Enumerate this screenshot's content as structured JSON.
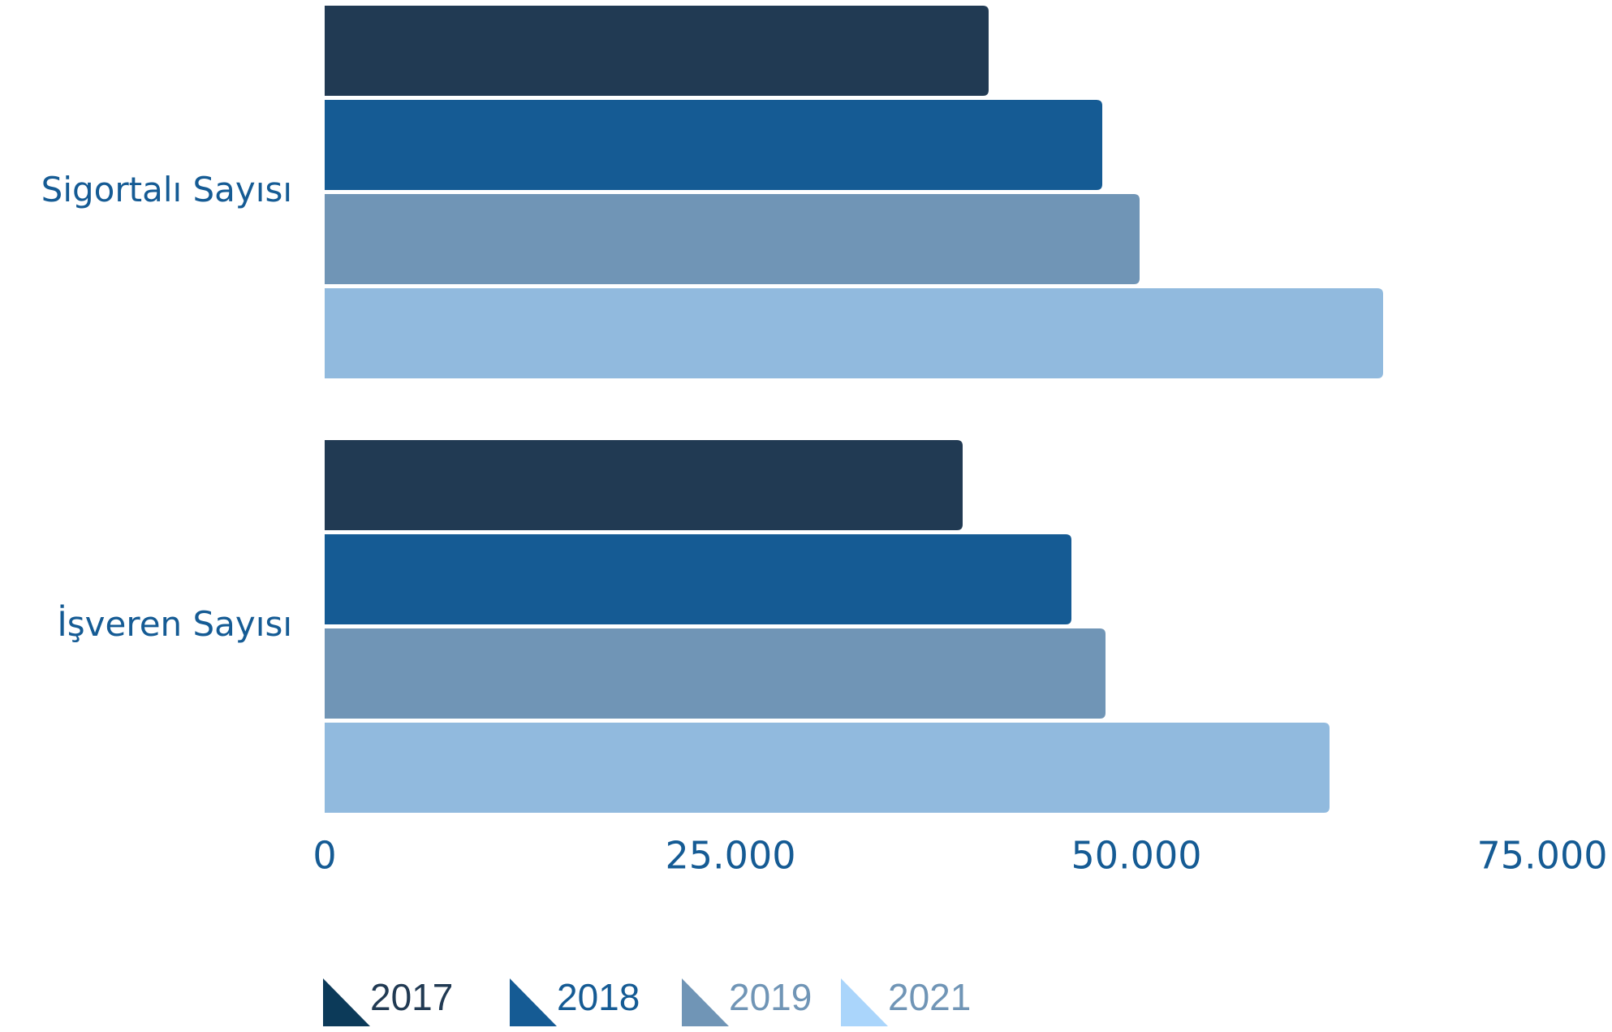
{
  "chart_data": {
    "type": "bar",
    "orientation": "horizontal",
    "title": "",
    "xlabel": "",
    "ylabel": "",
    "categories": [
      "Sigortalı Sayısı",
      "İşveren Sayısı"
    ],
    "series": [
      {
        "name": "2017",
        "values": [
          40900,
          39300
        ],
        "color": "#213a53"
      },
      {
        "name": "2018",
        "values": [
          47900,
          46000
        ],
        "color": "#155b94"
      },
      {
        "name": "2019",
        "values": [
          50200,
          48100
        ],
        "color": "#7095b6"
      },
      {
        "name": "2021",
        "values": [
          65200,
          61900
        ],
        "color": "#91bade"
      }
    ],
    "xlim": [
      0,
      79000
    ],
    "x_ticks": [
      0,
      25000,
      50000,
      75000
    ],
    "x_tick_labels": [
      "0",
      "25.000",
      "50.000",
      "75.000"
    ],
    "grid": false,
    "legend_position": "bottom-left",
    "legend_marker_colors": [
      "#0c3a59",
      "#155b94",
      "#7095b6",
      "#aad5fb"
    ],
    "legend_text_colors": [
      "#213a53",
      "#155b94",
      "#7095b6",
      "#7095b6"
    ],
    "label_color": "#155b94"
  }
}
